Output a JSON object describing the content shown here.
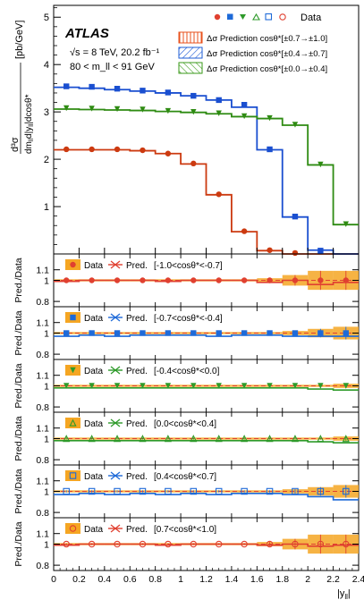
{
  "chart_data": {
    "type": "line",
    "x_axis": {
      "label": "|y_ll|",
      "range": [
        0,
        2.4
      ],
      "ticks": [
        "0",
        "0.2",
        "0.4",
        "0.6",
        "0.8",
        "1",
        "1.2",
        "1.4",
        "1.6",
        "1.8",
        "2",
        "2.2",
        "2.4"
      ]
    },
    "bin_edges": [
      0,
      0.2,
      0.4,
      0.6,
      0.8,
      1.0,
      1.2,
      1.4,
      1.6,
      1.8,
      2.0,
      2.2,
      2.4
    ],
    "x_centers": [
      0.1,
      0.3,
      0.5,
      0.7,
      0.9,
      1.1,
      1.3,
      1.5,
      1.7,
      1.9,
      2.1,
      2.3
    ],
    "main": {
      "ylabel": "d³σ / dm_ll d|y_ll| dcosθ* [pb/GeV]",
      "ylim": [
        0,
        5.25
      ],
      "yticks": [
        "1",
        "2",
        "3",
        "4",
        "5"
      ],
      "atlas_label": "ATLAS",
      "energy_text": "√s = 8 TeV, 20.2 fb⁻¹",
      "mass_text": "80 < m_ll < 91 GeV",
      "legend_data": "Data",
      "legend": [
        {
          "label": "Δσ Prediction cosθ*[±0.7→±1.0]",
          "color": "#e8521c",
          "hatch": "vertical"
        },
        {
          "label": "Δσ Prediction cosθ*[±0.4→±0.7]",
          "color": "#1e5cd6",
          "hatch": "diagonal"
        },
        {
          "label": "Δσ Prediction cosθ*[±0.0→±0.4]",
          "color": "#3a9a1a",
          "hatch": "diagonal-back"
        }
      ],
      "series": [
        {
          "name": "Δσ Prediction cosθ*[±0.7→±1.0]",
          "color": "#cc3a10",
          "values": [
            2.2,
            2.2,
            2.2,
            2.18,
            2.12,
            1.9,
            1.25,
            0.47,
            0.07,
            0.0,
            0.0,
            0.0
          ],
          "data": [
            2.21,
            2.21,
            2.21,
            2.19,
            2.12,
            1.91,
            1.26,
            0.48,
            0.08,
            0.02,
            0.0,
            0.0
          ]
        },
        {
          "name": "Δσ Prediction cosθ*[±0.4→±0.7]",
          "color": "#1a4fd0",
          "values": [
            3.52,
            3.5,
            3.47,
            3.44,
            3.4,
            3.34,
            3.25,
            3.1,
            2.2,
            0.78,
            0.08,
            0.0
          ],
          "data": [
            3.54,
            3.53,
            3.49,
            3.45,
            3.41,
            3.34,
            3.25,
            3.15,
            2.21,
            0.79,
            0.07,
            0.0
          ]
        },
        {
          "name": "Δσ Prediction cosθ*[±0.0→±0.4]",
          "color": "#2e8b12",
          "values": [
            3.06,
            3.05,
            3.04,
            3.03,
            3.01,
            2.99,
            2.96,
            2.9,
            2.86,
            2.72,
            1.88,
            0.62
          ],
          "data": [
            3.08,
            3.07,
            3.06,
            3.05,
            3.02,
            3.0,
            2.97,
            2.91,
            2.87,
            2.73,
            1.89,
            0.63
          ]
        }
      ]
    },
    "ratio_panels": [
      {
        "label": "[-1.0<cosθ*<-0.7]",
        "color": "#e04030",
        "marker": "circle",
        "ylim": [
          0.75,
          1.25
        ],
        "yticks": [
          "0.8",
          "1",
          "1.1"
        ],
        "ylabel": "Pred./Data",
        "data_label": "Data",
        "pred_label": "Pred.",
        "ratio": [
          0.99,
          1.0,
          1.0,
          1.0,
          0.99,
          1.0,
          1.0,
          1.0,
          0.98,
          1.0,
          0.96,
          0.98
        ],
        "data_err": [
          0.01,
          0.01,
          0.01,
          0.01,
          0.01,
          0.01,
          0.01,
          0.01,
          0.02,
          0.05,
          0.09,
          0.09
        ],
        "data_points": [
          1.0,
          1.0,
          1.0,
          1.0,
          1.0,
          1.0,
          1.0,
          1.0,
          1.0,
          1.0,
          1.0,
          1.0
        ]
      },
      {
        "label": "[-0.7<cosθ*<-0.4]",
        "color": "#1e6ad8",
        "marker": "square",
        "ylim": [
          0.75,
          1.25
        ],
        "yticks": [
          "0.8",
          "1",
          "1.1"
        ],
        "ylabel": "Pred./Data",
        "data_label": "Data",
        "pred_label": "Pred.",
        "ratio": [
          0.97,
          0.98,
          0.97,
          0.98,
          0.98,
          0.98,
          0.97,
          0.98,
          0.98,
          0.97,
          0.97,
          0.97
        ],
        "data_err": [
          0.01,
          0.01,
          0.01,
          0.01,
          0.01,
          0.01,
          0.01,
          0.01,
          0.01,
          0.02,
          0.04,
          0.06
        ],
        "data_points": [
          1.0,
          1.0,
          1.0,
          1.0,
          1.0,
          1.0,
          1.0,
          1.0,
          1.0,
          1.0,
          1.0,
          1.0
        ]
      },
      {
        "label": "[-0.4<cosθ*<0.0]",
        "color": "#2e9a2a",
        "marker": "triangle-down",
        "ylim": [
          0.75,
          1.25
        ],
        "yticks": [
          "0.8",
          "1",
          "1.1"
        ],
        "ylabel": "Pred./Data",
        "data_label": "Data",
        "pred_label": "Pred.",
        "ratio": [
          0.98,
          0.98,
          0.98,
          0.98,
          0.98,
          0.98,
          0.98,
          0.98,
          0.98,
          0.98,
          0.97,
          0.96
        ],
        "data_err": [
          0.01,
          0.01,
          0.01,
          0.01,
          0.01,
          0.01,
          0.01,
          0.01,
          0.01,
          0.01,
          0.01,
          0.02
        ],
        "data_points": [
          1.0,
          1.0,
          1.0,
          1.0,
          1.0,
          1.0,
          1.0,
          1.0,
          1.0,
          1.0,
          1.0,
          1.0
        ]
      },
      {
        "label": "[0.0<cosθ*<0.4]",
        "color": "#2e9a2a",
        "marker": "triangle-up",
        "ylim": [
          0.75,
          1.25
        ],
        "yticks": [
          "0.8",
          "1",
          "1.1"
        ],
        "ylabel": "Pred./Data",
        "data_label": "Data",
        "pred_label": "Pred.",
        "ratio": [
          0.98,
          0.98,
          0.98,
          0.98,
          0.98,
          0.98,
          0.98,
          0.98,
          0.98,
          0.98,
          0.97,
          0.96
        ],
        "data_err": [
          0.01,
          0.01,
          0.01,
          0.01,
          0.01,
          0.01,
          0.01,
          0.01,
          0.01,
          0.01,
          0.01,
          0.02
        ],
        "data_points": [
          1.0,
          1.0,
          1.0,
          1.0,
          1.0,
          1.0,
          1.0,
          1.0,
          1.0,
          1.0,
          1.0,
          1.0
        ]
      },
      {
        "label": "[0.4<cosθ*<0.7]",
        "color": "#1e6ad8",
        "marker": "square-open",
        "ylim": [
          0.75,
          1.25
        ],
        "yticks": [
          "0.8",
          "1",
          "1.1"
        ],
        "ylabel": "Pred./Data",
        "data_label": "Data",
        "pred_label": "Pred.",
        "ratio": [
          0.97,
          0.98,
          0.97,
          0.98,
          0.97,
          0.98,
          0.97,
          0.98,
          0.98,
          0.97,
          0.95,
          0.92
        ],
        "data_err": [
          0.01,
          0.01,
          0.01,
          0.01,
          0.01,
          0.01,
          0.01,
          0.01,
          0.01,
          0.02,
          0.04,
          0.06
        ],
        "data_points": [
          1.0,
          1.0,
          1.0,
          1.0,
          1.0,
          1.0,
          1.0,
          1.0,
          1.0,
          1.0,
          1.0,
          1.0
        ]
      },
      {
        "label": "[0.7<cosθ*<1.0]",
        "color": "#e04030",
        "marker": "circle-open",
        "ylim": [
          0.75,
          1.25
        ],
        "yticks": [
          "0.8",
          "1",
          "1.1"
        ],
        "ylabel": "Pred./Data",
        "data_label": "Data",
        "pred_label": "Pred.",
        "ratio": [
          0.99,
          1.0,
          1.0,
          1.0,
          0.99,
          1.0,
          1.0,
          1.0,
          0.99,
          1.0,
          0.98,
          0.99
        ],
        "data_err": [
          0.01,
          0.01,
          0.01,
          0.01,
          0.01,
          0.01,
          0.01,
          0.01,
          0.02,
          0.05,
          0.09,
          0.09
        ],
        "data_points": [
          1.0,
          1.0,
          1.0,
          1.0,
          1.0,
          1.0,
          1.0,
          1.0,
          1.0,
          1.0,
          1.0,
          1.0
        ]
      }
    ]
  },
  "colors": {
    "band_orange": "#f5a623",
    "red": "#e04030",
    "blue": "#1e6ad8",
    "green": "#2e9a2a"
  }
}
